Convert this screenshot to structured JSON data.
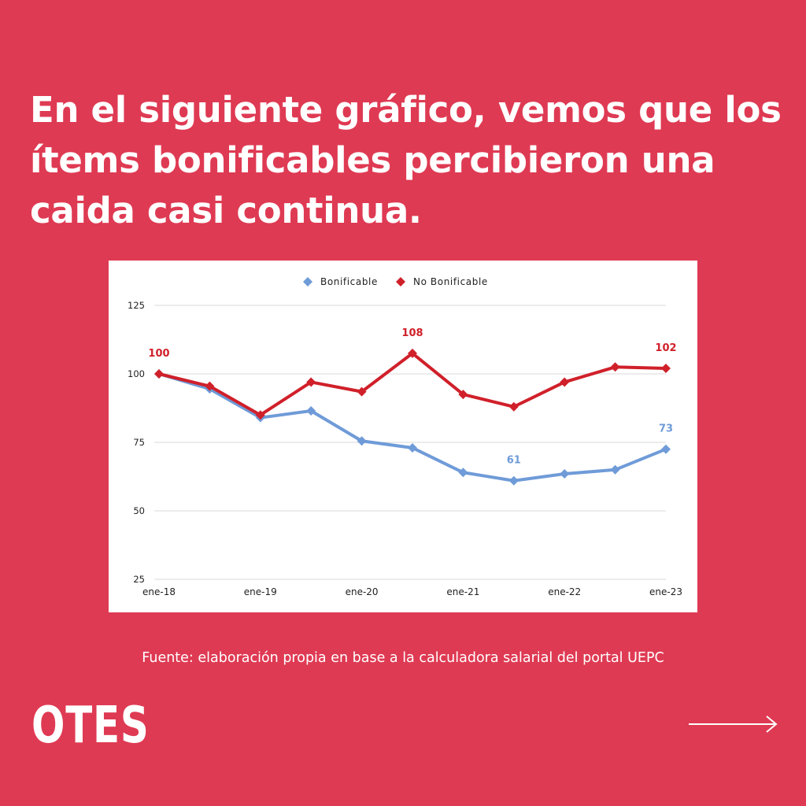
{
  "headline": "En el siguiente gráfico, vemos que los ítems bonificables percibieron una caida casi continua.",
  "source": "Fuente: elaboración propia en base a la calculadora salarial del portal UEPC",
  "logo": "OTES",
  "icons": {
    "next": "arrow-right-icon"
  },
  "colors": {
    "background": "#DF3A53",
    "bonificable": "#6F9BD8",
    "no_bonificable": "#D0202A",
    "grid": "#D9D9D9"
  },
  "chart_data": {
    "type": "line",
    "title": "",
    "xlabel": "",
    "ylabel": "",
    "x": [
      "ene-18",
      "jul-18",
      "ene-19",
      "jul-19",
      "ene-20",
      "jul-20",
      "ene-21",
      "jul-21",
      "ene-22",
      "jul-22",
      "ene-23"
    ],
    "x_tick_labels": [
      "ene-18",
      "ene-19",
      "ene-20",
      "ene-21",
      "ene-22",
      "ene-23"
    ],
    "yticks": [
      25,
      50,
      75,
      100,
      125
    ],
    "ylim": [
      25,
      125
    ],
    "grid": true,
    "legend_position": "top-center",
    "series": [
      {
        "name": "Bonificable",
        "color": "#6F9BD8",
        "values": [
          100,
          94.5,
          84,
          86.5,
          75.5,
          73,
          64,
          61,
          63.5,
          65,
          72.5
        ],
        "labels": [
          {
            "index": 7,
            "text": "61"
          },
          {
            "index": 10,
            "text": "73"
          }
        ]
      },
      {
        "name": "No Bonificable",
        "color": "#D0202A",
        "values": [
          100,
          95.5,
          85,
          97,
          93.5,
          107.5,
          92.5,
          88,
          97,
          102.5,
          102
        ],
        "labels": [
          {
            "index": 0,
            "text": "100"
          },
          {
            "index": 5,
            "text": "108"
          },
          {
            "index": 10,
            "text": "102"
          }
        ]
      }
    ]
  }
}
